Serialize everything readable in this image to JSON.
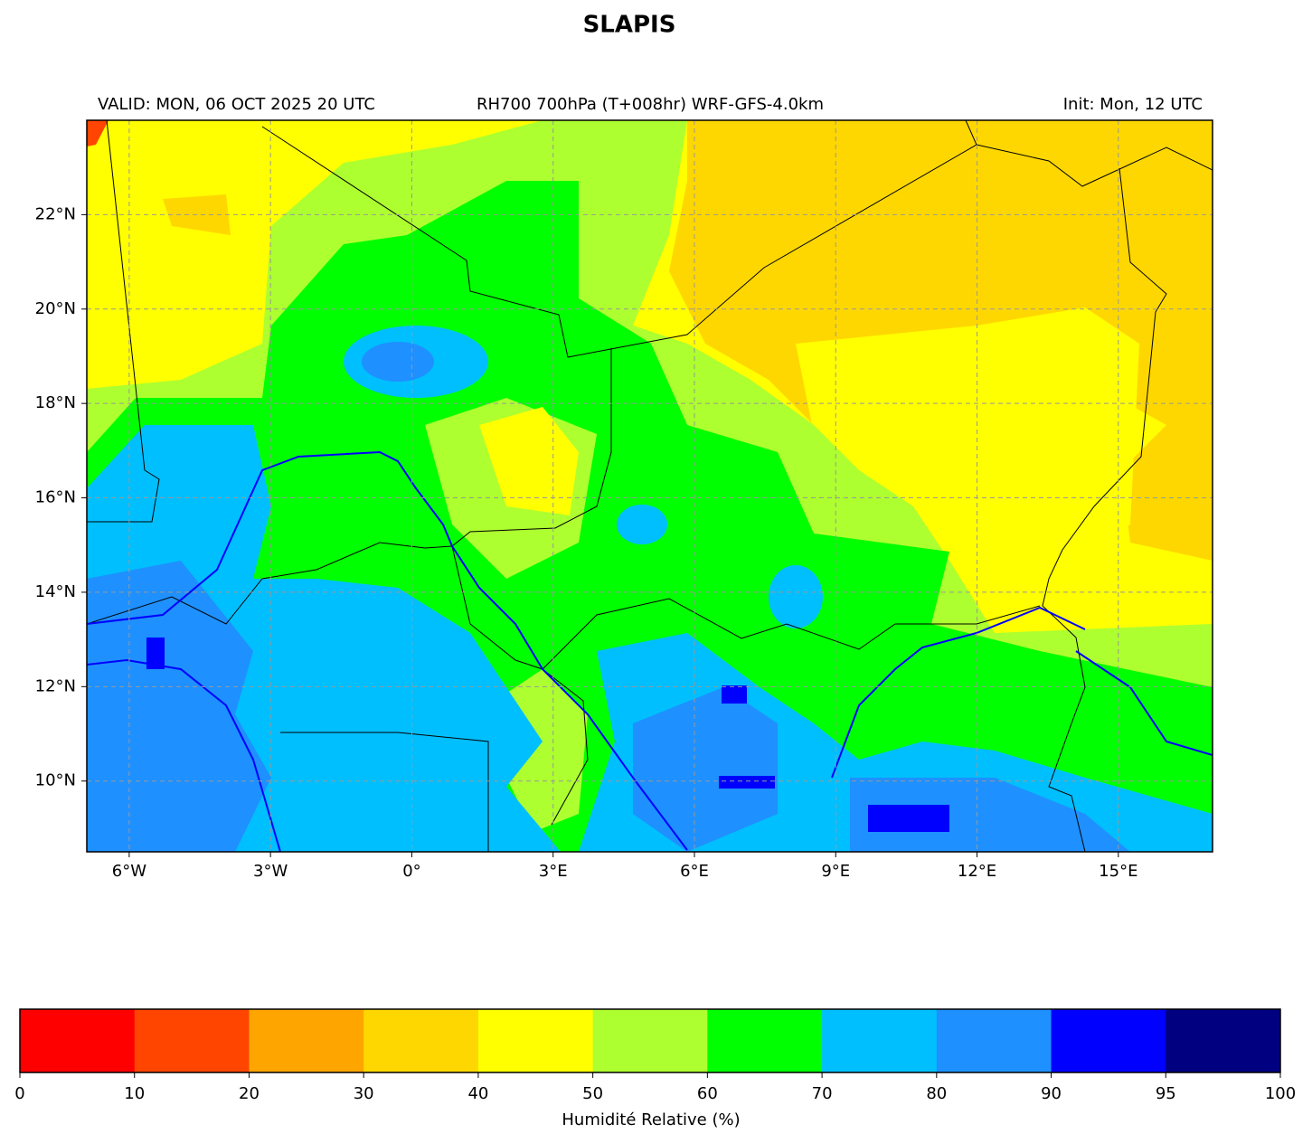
{
  "title": "SLAPIS",
  "subtitle_left": "VALID: MON, 06 OCT 2025 20 UTC",
  "subtitle_center": "RH700 700hPa (T+008hr) WRF-GFS-4.0km",
  "subtitle_right": "Init: Mon, 12 UTC",
  "map": {
    "xlim": [
      -6.9,
      17
    ],
    "ylim": [
      8.5,
      24
    ],
    "grid": true,
    "xticks": [
      {
        "value": -6,
        "label": "6°W"
      },
      {
        "value": -3,
        "label": "3°W"
      },
      {
        "value": 0,
        "label": "0°"
      },
      {
        "value": 3,
        "label": "3°E"
      },
      {
        "value": 6,
        "label": "6°E"
      },
      {
        "value": 9,
        "label": "9°E"
      },
      {
        "value": 12,
        "label": "12°E"
      },
      {
        "value": 15,
        "label": "15°E"
      }
    ],
    "yticks": [
      {
        "value": 10,
        "label": "10°N"
      },
      {
        "value": 12,
        "label": "12°N"
      },
      {
        "value": 14,
        "label": "14°N"
      },
      {
        "value": 16,
        "label": "16°N"
      },
      {
        "value": 18,
        "label": "18°N"
      },
      {
        "value": 20,
        "label": "20°N"
      },
      {
        "value": 22,
        "label": "22°N"
      }
    ]
  },
  "colorbar": {
    "label": "Humidité Relative (%)",
    "ticks": [
      0,
      10,
      20,
      30,
      40,
      50,
      60,
      70,
      80,
      90,
      95,
      100
    ],
    "colors": [
      "#ff0000",
      "#ff4500",
      "#ffa500",
      "#ffd700",
      "#ffff00",
      "#adff2f",
      "#00ff00",
      "#00bfff",
      "#1e90ff",
      "#0000ff",
      "#000080"
    ]
  }
}
